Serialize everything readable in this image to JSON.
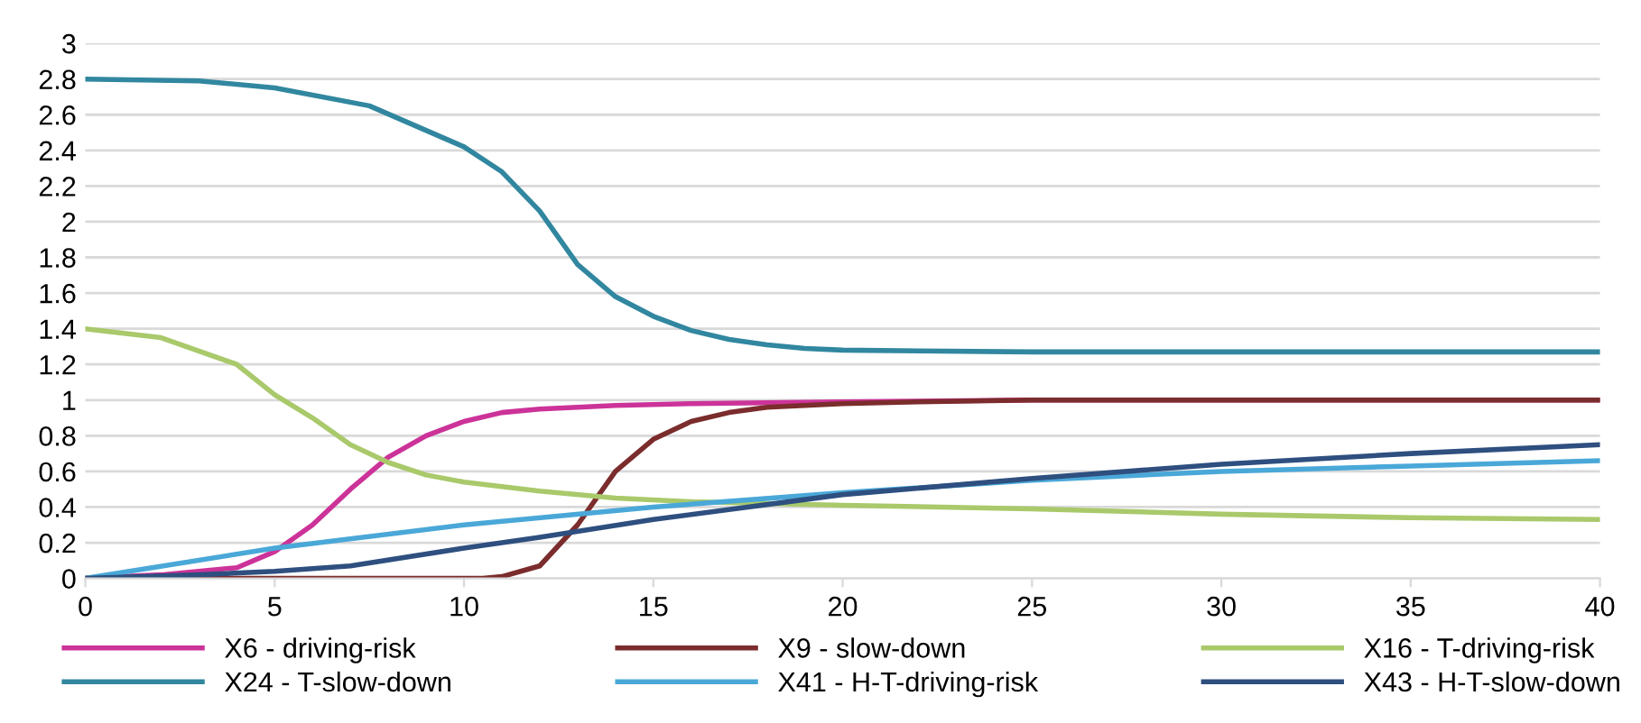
{
  "chart_data": {
    "type": "line",
    "xlim": [
      0,
      40
    ],
    "ylim": [
      0,
      3
    ],
    "xticks": [
      0,
      5,
      10,
      15,
      20,
      25,
      30,
      35,
      40
    ],
    "yticks": [
      0,
      0.2,
      0.4,
      0.6,
      0.8,
      1,
      1.2,
      1.4,
      1.6,
      1.8,
      2,
      2.2,
      2.4,
      2.6,
      2.8,
      3
    ],
    "grid": "y",
    "legend": "bottom",
    "marker": "none",
    "line_style": "solid",
    "series": [
      {
        "name": "X6 - driving-risk",
        "color": "#cc3399",
        "x": [
          0,
          2,
          4,
          5,
          6,
          7,
          8,
          9,
          10,
          11,
          12,
          14,
          16,
          20,
          25,
          30,
          35,
          40
        ],
        "values": [
          0,
          0.02,
          0.06,
          0.15,
          0.3,
          0.5,
          0.68,
          0.8,
          0.88,
          0.93,
          0.95,
          0.97,
          0.98,
          0.99,
          1,
          1,
          1,
          1
        ]
      },
      {
        "name": "X9 - slow-down",
        "color": "#7b2c2c",
        "x": [
          0,
          5,
          10,
          10.5,
          11,
          12,
          13,
          14,
          15,
          16,
          17,
          18,
          20,
          22,
          25,
          30,
          35,
          40
        ],
        "values": [
          0,
          0,
          0,
          0,
          0.01,
          0.07,
          0.3,
          0.6,
          0.78,
          0.88,
          0.93,
          0.96,
          0.98,
          0.99,
          1,
          1,
          1,
          1
        ]
      },
      {
        "name": "X16 - T-driving-risk",
        "color": "#a9c96b",
        "x": [
          0,
          2,
          4,
          5,
          6,
          7,
          8,
          9,
          10,
          12,
          14,
          16,
          18,
          20,
          25,
          30,
          35,
          40
        ],
        "values": [
          1.4,
          1.35,
          1.2,
          1.03,
          0.9,
          0.75,
          0.65,
          0.58,
          0.54,
          0.49,
          0.45,
          0.43,
          0.42,
          0.41,
          0.39,
          0.36,
          0.34,
          0.33
        ]
      },
      {
        "name": "X24 - T-slow-down",
        "color": "#31879f",
        "x": [
          0,
          3,
          5,
          7.5,
          10,
          11,
          12,
          13,
          14,
          15,
          16,
          17,
          18,
          19,
          20,
          25,
          30,
          35,
          40
        ],
        "values": [
          2.8,
          2.79,
          2.75,
          2.65,
          2.42,
          2.28,
          2.06,
          1.76,
          1.58,
          1.47,
          1.39,
          1.34,
          1.31,
          1.29,
          1.28,
          1.27,
          1.27,
          1.27,
          1.27
        ]
      },
      {
        "name": "X41 - H-T-driving-risk",
        "color": "#4aa8d8",
        "x": [
          0,
          5,
          10,
          15,
          20,
          25,
          30,
          35,
          40
        ],
        "values": [
          0,
          0.17,
          0.3,
          0.4,
          0.48,
          0.55,
          0.6,
          0.63,
          0.66
        ]
      },
      {
        "name": "X43 - H-T-slow-down",
        "color": "#2e4f7f",
        "x": [
          0,
          3,
          5,
          7,
          10,
          12,
          15,
          20,
          25,
          30,
          35,
          40
        ],
        "values": [
          0,
          0.02,
          0.04,
          0.07,
          0.17,
          0.23,
          0.33,
          0.47,
          0.56,
          0.64,
          0.7,
          0.75
        ]
      }
    ]
  }
}
